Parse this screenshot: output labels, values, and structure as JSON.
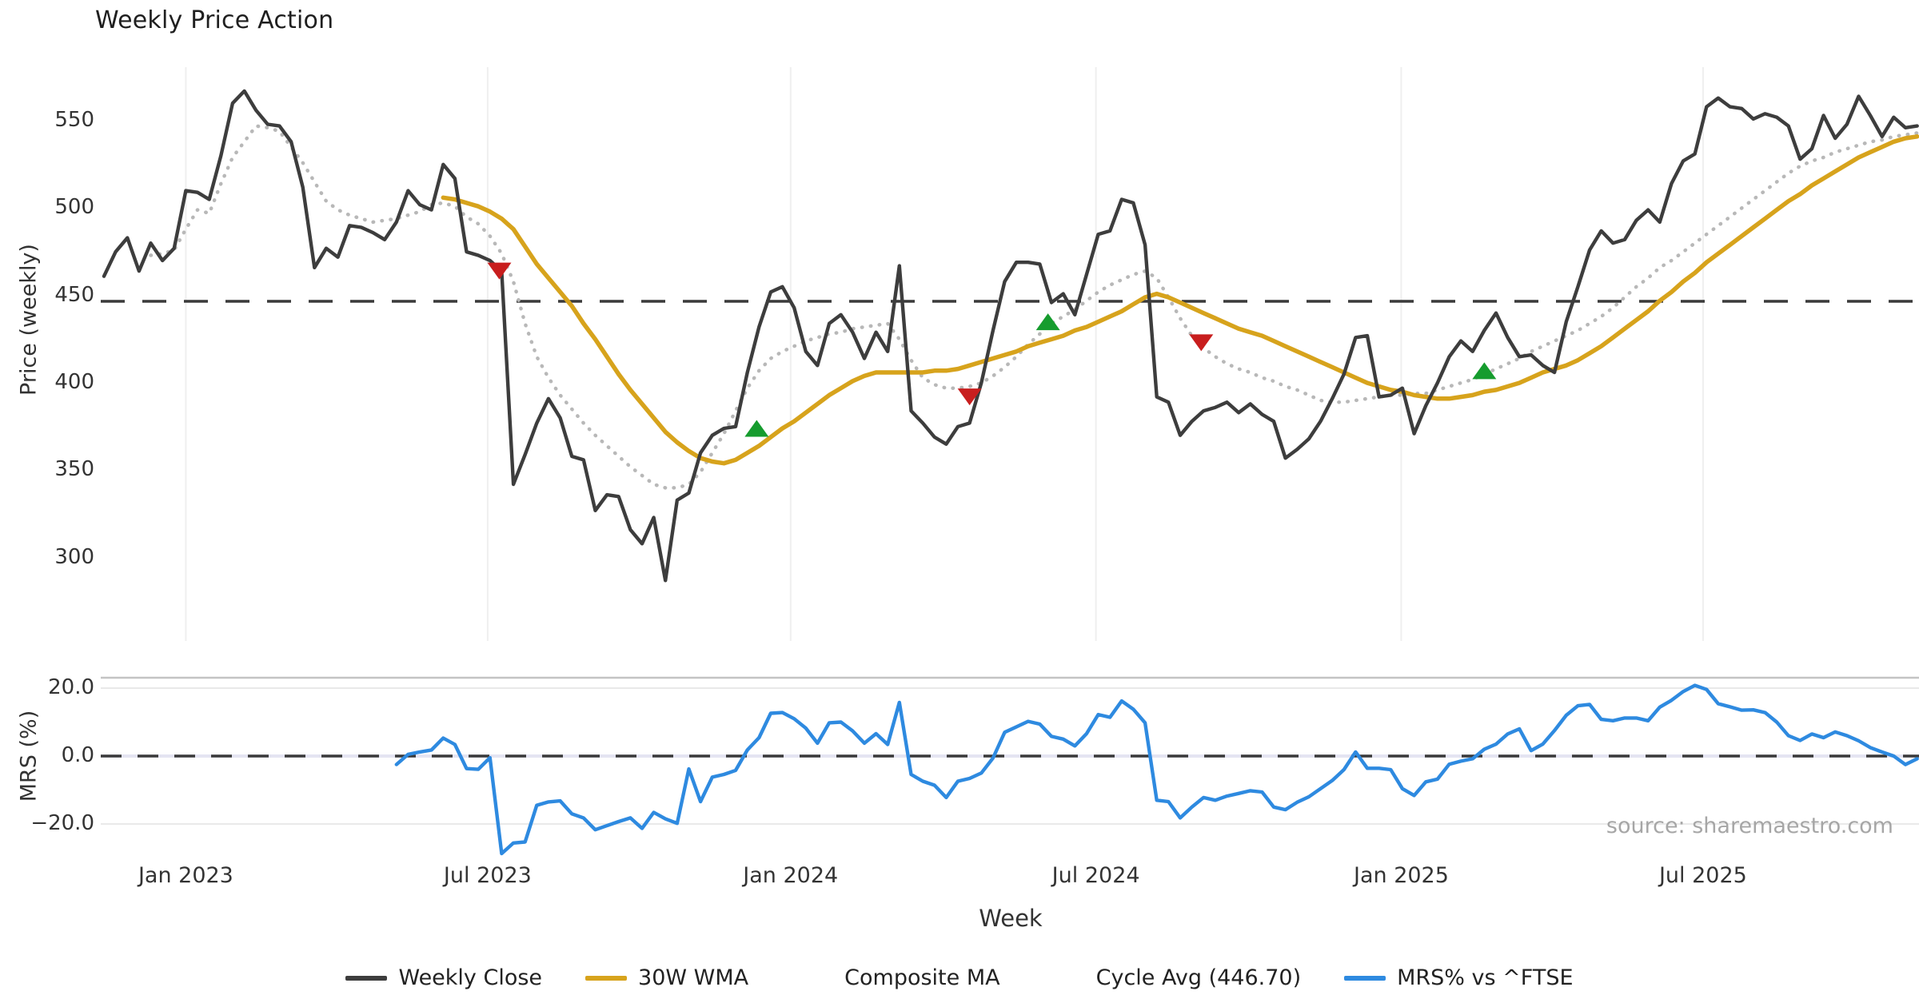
{
  "title": "Weekly Price Action",
  "source": "source: sharemaestro.com",
  "axes": {
    "price_label": "Price (weekly)",
    "mrs_label": "MRS (%)",
    "x_label": "Week",
    "price_ticks": [
      "550",
      "500",
      "450",
      "400",
      "350",
      "300"
    ],
    "mrs_ticks": [
      "20.0",
      "0.0",
      "−20.0"
    ]
  },
  "legend": {
    "items": [
      {
        "label": "Weekly Close",
        "style": "solid",
        "color": "#3d3d3d"
      },
      {
        "label": "30W WMA",
        "style": "solid",
        "color": "#d7a31c"
      },
      {
        "label": "Composite MA",
        "style": "dotted",
        "color": "#b8b8b8"
      },
      {
        "label": "Cycle Avg (446.70)",
        "style": "dashed",
        "color": "#3a3a3a"
      },
      {
        "label": "MRS% vs ^FTSE",
        "style": "solid",
        "color": "#2e8ae0"
      }
    ]
  },
  "chart_data": {
    "type": "line",
    "title": "Weekly Price Action",
    "x_unit": "week_index",
    "total_weeks": 156,
    "x_axis": {
      "label": "Week",
      "ticks": [
        {
          "label": "Jan 2023",
          "week": 7
        },
        {
          "label": "Jul 2023",
          "week": 32.8
        },
        {
          "label": "Jan 2024",
          "week": 58.7
        },
        {
          "label": "Jul 2024",
          "week": 84.8
        },
        {
          "label": "Jan 2025",
          "week": 110.9
        },
        {
          "label": "Jul 2025",
          "week": 136.7
        }
      ]
    },
    "panels": {
      "price": {
        "ylabel": "Price (weekly)",
        "ticks": [
          550,
          500,
          450,
          400,
          350,
          300
        ],
        "ylim": [
          275,
          585
        ],
        "cycle_avg": 446.7,
        "grid": "vertical-only"
      },
      "mrs": {
        "ylabel": "MRS (%)",
        "ticks": [
          20,
          0,
          -20
        ],
        "ylim": [
          -30,
          22
        ],
        "zero_line": true
      }
    },
    "series": [
      {
        "name": "Weekly Close",
        "panel": "price",
        "style": "solid",
        "color": "#3d3d3d",
        "start_week": 0,
        "values": [
          461,
          475,
          483,
          464,
          480,
          470,
          477,
          510,
          509,
          505,
          530,
          560,
          567,
          556,
          548,
          547,
          538,
          512,
          466,
          477,
          472,
          490,
          489,
          486,
          482,
          492,
          510,
          502,
          499,
          525,
          517,
          475,
          473,
          470,
          464,
          342,
          359,
          377,
          391,
          380,
          358,
          356,
          327,
          336,
          335,
          316,
          308,
          323,
          287,
          333,
          337,
          360,
          370,
          374,
          375,
          406,
          432,
          452,
          455,
          443,
          418,
          410,
          434,
          439,
          429,
          414,
          429,
          418,
          467,
          384,
          377,
          369,
          365,
          375,
          377,
          400,
          430,
          458,
          469,
          469,
          468,
          446,
          451,
          439,
          462,
          485,
          487,
          505,
          503,
          479,
          392,
          389,
          370,
          378,
          384,
          386,
          389,
          383,
          388,
          382,
          378,
          357,
          362,
          368,
          378,
          391,
          405,
          426,
          427,
          392,
          393,
          397,
          371,
          387,
          400,
          415,
          424,
          418,
          430,
          440,
          426,
          415,
          416,
          410,
          406,
          435,
          455,
          476,
          487,
          480,
          482,
          493,
          499,
          492,
          514,
          527,
          531,
          558,
          563,
          558,
          557,
          551,
          554,
          552,
          547,
          528,
          534,
          553,
          540,
          548,
          564,
          553,
          541,
          552,
          546,
          547
        ]
      },
      {
        "name": "30W WMA",
        "panel": "price",
        "style": "solid",
        "color": "#d7a31c",
        "start_week": 29,
        "values": [
          506,
          505,
          503,
          501,
          498,
          494,
          488,
          478,
          468,
          460,
          452,
          444,
          434,
          425,
          415,
          405,
          396,
          388,
          380,
          372,
          366,
          361,
          357,
          355,
          354,
          356,
          360,
          364,
          369,
          374,
          378,
          383,
          388,
          393,
          397,
          401,
          404,
          406,
          406,
          406,
          406,
          406,
          407,
          407,
          408,
          410,
          412,
          414,
          416,
          418,
          421,
          423,
          425,
          427,
          430,
          432,
          435,
          438,
          441,
          445,
          449,
          451,
          449,
          446,
          443,
          440,
          437,
          434,
          431,
          429,
          427,
          424,
          421,
          418,
          415,
          412,
          409,
          406,
          403,
          400,
          398,
          396,
          395,
          393,
          392,
          391,
          391,
          392,
          393,
          395,
          396,
          398,
          400,
          403,
          406,
          408,
          410,
          413,
          417,
          421,
          426,
          431,
          436,
          441,
          447,
          452,
          458,
          463,
          469,
          474,
          479,
          484,
          489,
          494,
          499,
          504,
          508,
          513,
          517,
          521,
          525,
          529,
          532,
          535,
          538,
          540,
          541
        ]
      },
      {
        "name": "Composite MA",
        "panel": "price",
        "style": "dotted",
        "color": "#b8b8b8",
        "start_week": 4,
        "values": [
          473,
          474,
          476,
          488,
          499,
          497,
          514,
          529,
          538,
          547,
          546,
          544,
          535,
          526,
          515,
          504,
          499,
          496,
          494,
          492,
          493,
          494,
          496,
          498,
          502,
          503,
          501,
          495,
          491,
          484,
          474,
          458,
          434,
          415,
          403,
          393,
          385,
          377,
          370,
          364,
          358,
          352,
          347,
          342,
          340,
          340,
          342,
          349,
          360,
          371,
          384,
          397,
          407,
          414,
          418,
          421,
          424,
          426,
          428,
          429,
          431,
          432,
          433,
          434,
          425,
          413,
          403,
          399,
          397,
          397,
          398,
          400,
          404,
          409,
          415,
          422,
          428,
          434,
          438,
          442,
          447,
          452,
          456,
          459,
          462,
          464,
          460,
          449,
          437,
          427,
          420,
          415,
          411,
          408,
          406,
          403,
          401,
          398,
          396,
          393,
          390,
          389,
          389,
          390,
          391,
          392,
          393,
          393,
          394,
          394,
          396,
          398,
          400,
          402,
          405,
          408,
          411,
          414,
          418,
          421,
          424,
          427,
          430,
          434,
          438,
          443,
          449,
          455,
          460,
          466,
          470,
          475,
          480,
          485,
          490,
          495,
          500,
          505,
          510,
          515,
          520,
          524,
          527,
          529,
          532,
          534,
          536,
          538,
          539,
          541,
          542,
          543
        ]
      },
      {
        "name": "MRS% vs ^FTSE",
        "panel": "mrs",
        "style": "solid",
        "color": "#2e8ae0",
        "start_week": 25,
        "values": [
          -2.5,
          0.5,
          1.2,
          1.8,
          5.3,
          3.4,
          -3.7,
          -3.9,
          -0.5,
          -28.7,
          -25.6,
          -25.3,
          -14.5,
          -13.5,
          -13.2,
          -17.0,
          -18.2,
          -21.7,
          -20.5,
          -19.3,
          -18.2,
          -21.3,
          -16.6,
          -18.5,
          -19.8,
          -3.8,
          -13.4,
          -6.2,
          -5.4,
          -4.2,
          1.8,
          5.4,
          12.6,
          12.8,
          11.0,
          8.2,
          3.8,
          9.8,
          10.0,
          7.4,
          3.8,
          6.6,
          3.4,
          15.8,
          -5.4,
          -7.4,
          -8.6,
          -12.2,
          -7.4,
          -6.6,
          -5.0,
          -0.6,
          7.0,
          8.6,
          10.2,
          9.4,
          5.8,
          5.0,
          3.0,
          6.6,
          12.2,
          11.4,
          16.2,
          13.8,
          9.8,
          -13.0,
          -13.4,
          -18.2,
          -15.0,
          -12.2,
          -13.0,
          -11.8,
          -11.0,
          -10.2,
          -10.6,
          -15.0,
          -15.8,
          -13.6,
          -12.0,
          -9.6,
          -7.2,
          -4.0,
          1.2,
          -3.6,
          -3.6,
          -4.0,
          -9.6,
          -11.6,
          -7.6,
          -6.8,
          -2.4,
          -1.5,
          -0.8,
          2.0,
          3.5,
          6.5,
          8.0,
          1.6,
          3.5,
          7.5,
          12.0,
          14.8,
          15.2,
          10.8,
          10.4,
          11.2,
          11.2,
          10.4,
          14.4,
          16.4,
          19.0,
          20.8,
          19.6,
          15.4,
          14.5,
          13.5,
          13.6,
          12.8,
          10.0,
          6.0,
          4.6,
          6.5,
          5.4,
          7.1,
          6.0,
          4.5,
          2.5,
          1.2,
          0.0,
          -2.5,
          -0.8
        ]
      }
    ],
    "markers": {
      "sell": [
        {
          "week": 33.8,
          "price": 464
        },
        {
          "week": 74.0,
          "price": 392
        },
        {
          "week": 93.8,
          "price": 423
        }
      ],
      "buy": [
        {
          "week": 55.8,
          "price": 374
        },
        {
          "week": 80.7,
          "price": 435
        },
        {
          "week": 118.0,
          "price": 407
        }
      ]
    },
    "marker_colors": {
      "sell": "#c81e1e",
      "buy": "#169c2e"
    },
    "cycle_avg": 446.7
  },
  "style_colors": {
    "grid_vertical": "#efefef",
    "mrs_top_border": "#c4c4c4",
    "mrs_gridline": "#e9e9e9",
    "mrs_zero_underlay": "#e4e4f2",
    "dashed_line": "#3a3a3a",
    "text": "#333333",
    "source_text": "#a6a6a6"
  }
}
